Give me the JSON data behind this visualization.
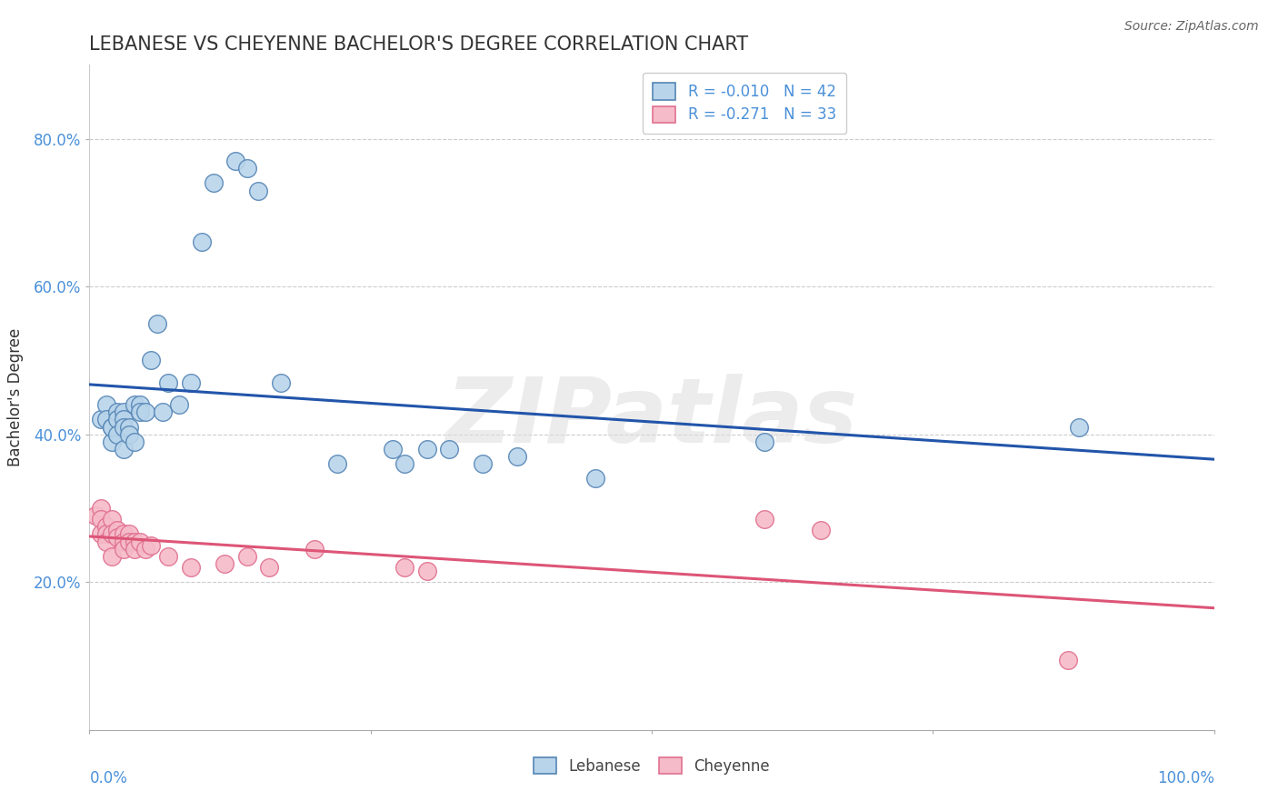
{
  "title": "LEBANESE VS CHEYENNE BACHELOR'S DEGREE CORRELATION CHART",
  "source": "Source: ZipAtlas.com",
  "ylabel": "Bachelor's Degree",
  "watermark": "ZIPatlas",
  "legend_r1": "R = -0.010",
  "legend_n1": "N = 42",
  "legend_r2": "R = -0.271",
  "legend_n2": "N = 33",
  "blue_fill": "#b8d4ea",
  "blue_edge": "#5585b5",
  "pink_fill": "#f5bbc8",
  "pink_edge": "#e07090",
  "blue_line_color": "#2255aa",
  "pink_line_color": "#dd5577",
  "blue_scatter_x": [
    0.01,
    0.015,
    0.015,
    0.02,
    0.02,
    0.02,
    0.025,
    0.025,
    0.025,
    0.03,
    0.03,
    0.03,
    0.03,
    0.035,
    0.035,
    0.04,
    0.04,
    0.045,
    0.045,
    0.05,
    0.055,
    0.06,
    0.065,
    0.07,
    0.08,
    0.09,
    0.1,
    0.11,
    0.13,
    0.14,
    0.15,
    0.17,
    0.22,
    0.27,
    0.28,
    0.3,
    0.32,
    0.35,
    0.38,
    0.45,
    0.6,
    0.88
  ],
  "blue_scatter_y": [
    0.42,
    0.44,
    0.42,
    0.41,
    0.39,
    0.41,
    0.43,
    0.42,
    0.4,
    0.43,
    0.42,
    0.41,
    0.38,
    0.41,
    0.4,
    0.44,
    0.39,
    0.44,
    0.43,
    0.43,
    0.5,
    0.55,
    0.43,
    0.47,
    0.44,
    0.47,
    0.66,
    0.74,
    0.77,
    0.76,
    0.73,
    0.47,
    0.36,
    0.38,
    0.36,
    0.38,
    0.38,
    0.36,
    0.37,
    0.34,
    0.39,
    0.41
  ],
  "pink_scatter_x": [
    0.005,
    0.01,
    0.01,
    0.01,
    0.015,
    0.015,
    0.015,
    0.02,
    0.02,
    0.02,
    0.025,
    0.025,
    0.03,
    0.03,
    0.03,
    0.035,
    0.035,
    0.04,
    0.04,
    0.045,
    0.05,
    0.055,
    0.07,
    0.09,
    0.12,
    0.14,
    0.16,
    0.2,
    0.28,
    0.3,
    0.6,
    0.65,
    0.87
  ],
  "pink_scatter_y": [
    0.29,
    0.3,
    0.285,
    0.265,
    0.275,
    0.265,
    0.255,
    0.285,
    0.265,
    0.235,
    0.27,
    0.26,
    0.265,
    0.255,
    0.245,
    0.265,
    0.255,
    0.255,
    0.245,
    0.255,
    0.245,
    0.25,
    0.235,
    0.22,
    0.225,
    0.235,
    0.22,
    0.245,
    0.22,
    0.215,
    0.285,
    0.27,
    0.095
  ],
  "xlim": [
    0.0,
    1.0
  ],
  "ylim": [
    0.0,
    0.9
  ],
  "ytick_positions": [
    0.2,
    0.4,
    0.6,
    0.8
  ],
  "ytick_labels": [
    "20.0%",
    "40.0%",
    "60.0%",
    "80.0%"
  ],
  "grid_color": "#cccccc",
  "title_color": "#333333",
  "axis_tick_color": "#4a90d9",
  "background_color": "#ffffff",
  "legend_text_color": "#4a90d9",
  "bottom_legend_color": "#444444"
}
